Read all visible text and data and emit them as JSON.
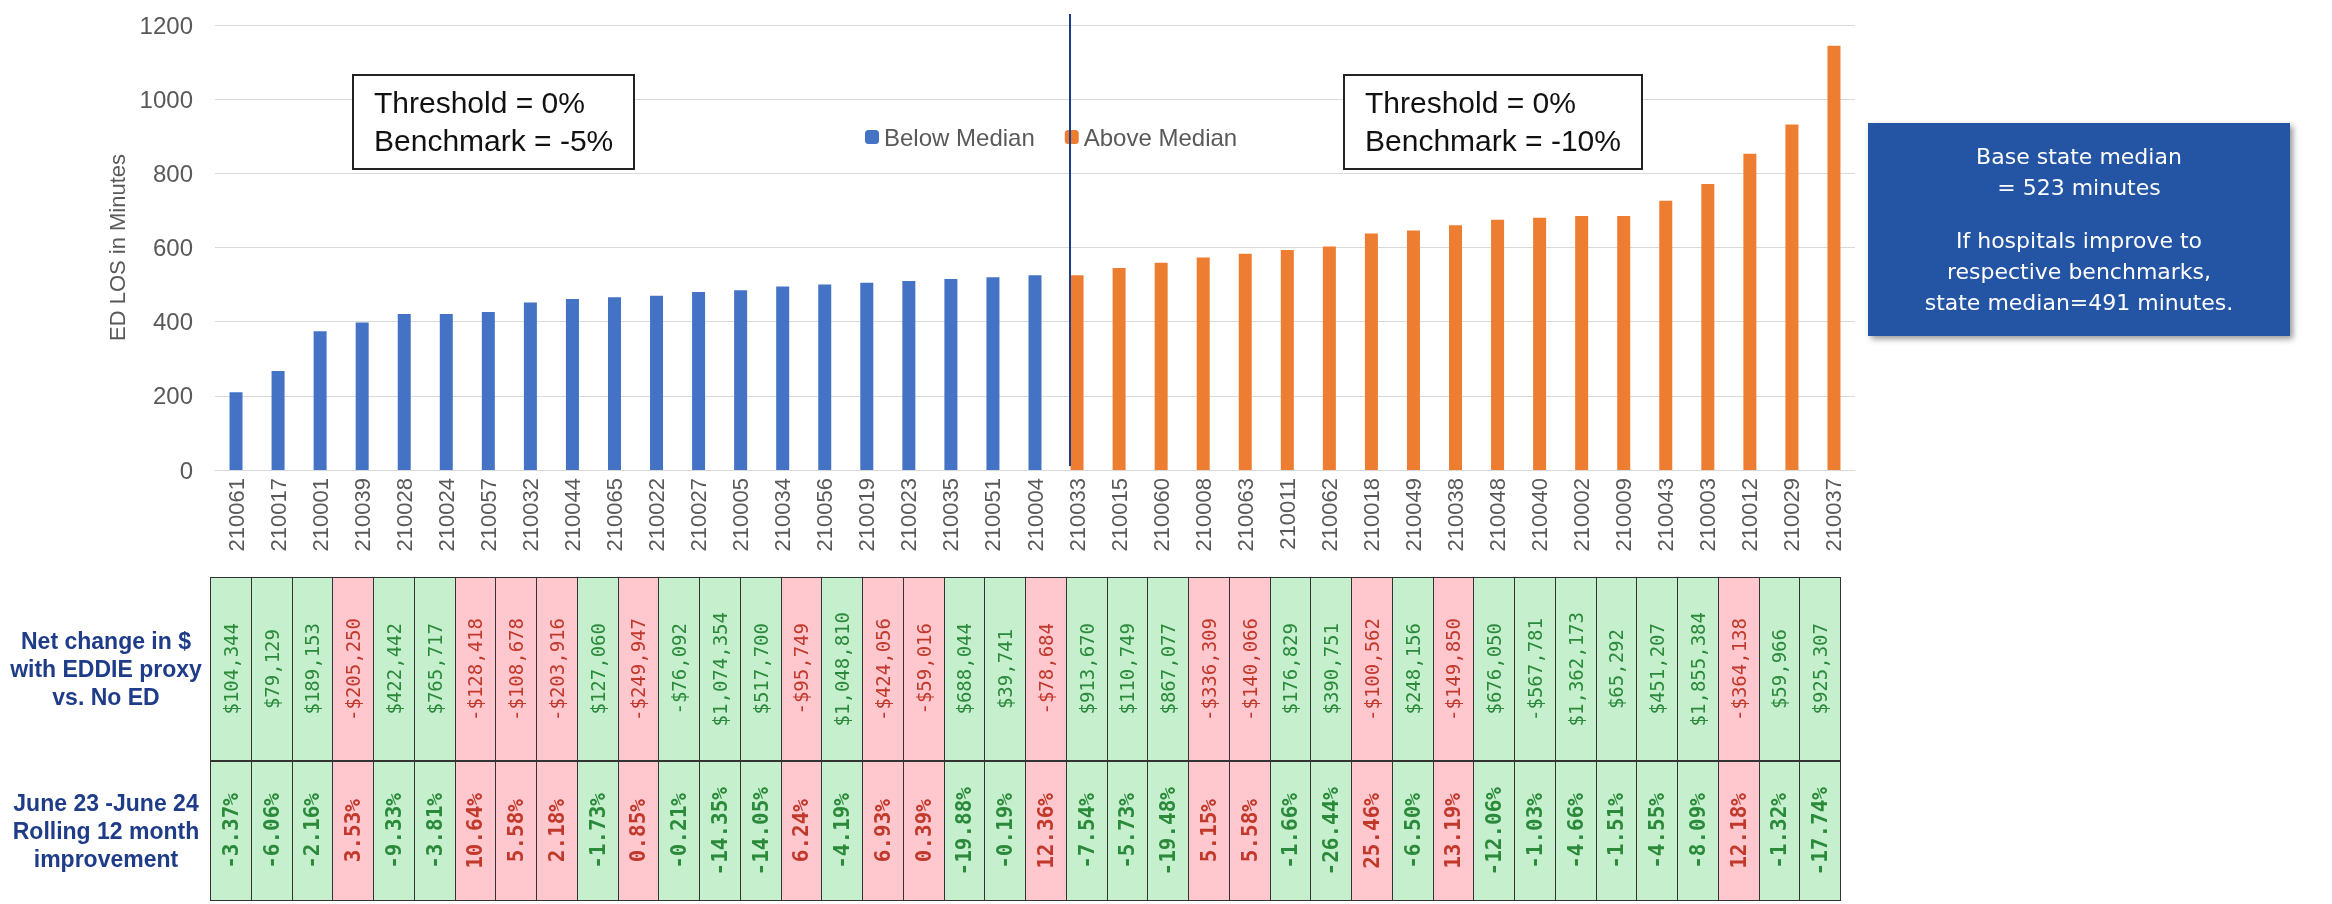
{
  "chart_data": {
    "type": "bar",
    "ylabel": "ED LOS in Minutes",
    "categories": [
      "210061",
      "210017",
      "210001",
      "210039",
      "210028",
      "210024",
      "210057",
      "210032",
      "210044",
      "210065",
      "210022",
      "210027",
      "210005",
      "210034",
      "210056",
      "210019",
      "210023",
      "210035",
      "210051",
      "210004",
      "210033",
      "210015",
      "210060",
      "210008",
      "210063",
      "210011",
      "210062",
      "210018",
      "210049",
      "210038",
      "210048",
      "210040",
      "210002",
      "210009",
      "210043",
      "210003",
      "210012",
      "210029",
      "210037"
    ],
    "series": [
      {
        "name": "Below Median",
        "color": "#4472c4",
        "values": [
          210,
          267,
          374,
          398,
          421,
          421,
          426,
          452,
          461,
          466,
          470,
          480,
          485,
          495,
          500,
          505,
          510,
          515,
          520,
          525,
          null,
          null,
          null,
          null,
          null,
          null,
          null,
          null,
          null,
          null,
          null,
          null,
          null,
          null,
          null,
          null,
          null,
          null,
          null
        ]
      },
      {
        "name": "Above Median",
        "color": "#ed7d31",
        "values": [
          null,
          null,
          null,
          null,
          null,
          null,
          null,
          null,
          null,
          null,
          null,
          null,
          null,
          null,
          null,
          null,
          null,
          null,
          null,
          null,
          525,
          545,
          559,
          573,
          583,
          593,
          603,
          638,
          646,
          660,
          675,
          680,
          685,
          685,
          726,
          771,
          853,
          932,
          1144
        ]
      }
    ],
    "ylim": [
      0,
      1200
    ],
    "yticks": [
      0,
      200,
      400,
      600,
      800,
      1000,
      1200
    ],
    "grid": "y",
    "legend": "top",
    "ref_lines": [
      {
        "axis": "x",
        "value": "210033",
        "color": "#1f3c88"
      }
    ],
    "annotations": [
      "Threshold = 0%\nBenchmark = -5%",
      "Threshold = 0%\nBenchmark = -10%",
      "Base state median\n= 523 minutes",
      "If hospitals improve to\nrespective benchmarks,\nstate median=491 minutes.",
      "Net change in $ with EDDIE proxy vs. No ED",
      "June 23 -June 24 Rolling 12 month improvement",
      "$104,344",
      "$79,129",
      "$189,153",
      "-$205,250",
      "$422,442",
      "$765,717",
      "-$128,418",
      "-$108,678",
      "-$203,916",
      "$127,060",
      "-$249,947",
      "-$76,092",
      "$1,074,354",
      "$517,700",
      "-$95,749",
      "$1,048,810",
      "-$424,056",
      "-$59,016",
      "$688,044",
      "$39,741",
      "-$78,684",
      "$913,670",
      "$110,749",
      "$867,077",
      "-$336,309",
      "-$140,066",
      "$176,829",
      "$390,751",
      "-$100,562",
      "$248,156",
      "-$149,850",
      "$676,050",
      "-$567,781",
      "$1,362,173",
      "$65,292",
      "$451,207",
      "$1,855,384",
      "-$364,138",
      "$59,966",
      "$925,307",
      "-3.37%",
      "-6.06%",
      "-2.16%",
      "3.53%",
      "-9.33%",
      "-3.81%",
      "10.64%",
      "5.58%",
      "2.18%",
      "-1.73%",
      "0.85%",
      "-0.21%",
      "-14.35%",
      "-14.05%",
      "6.24%",
      "-4.19%",
      "6.93%",
      "0.39%",
      "-19.88%",
      "-0.19%",
      "12.36%",
      "-7.54%",
      "-5.73%",
      "-19.48%",
      "5.15%",
      "5.58%",
      "-1.66%",
      "-26.44%",
      "25.46%",
      "-6.50%",
      "13.19%",
      "-12.06%",
      "-1.03%",
      "-4.66%",
      "-1.51%",
      "-4.55%",
      "-8.09%",
      "12.18%",
      "-1.32%",
      "-17.74%"
    ]
  }
}
